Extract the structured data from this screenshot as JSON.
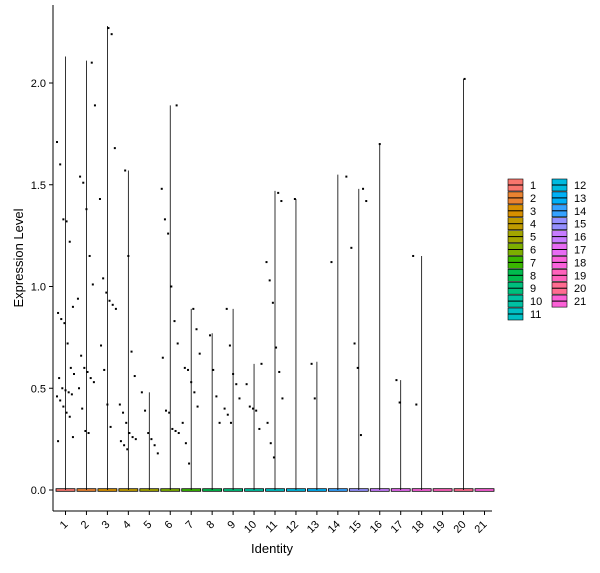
{
  "chart_data": {
    "type": "violin",
    "xlabel": "Identity",
    "ylabel": "Expression Level",
    "categories": [
      "1",
      "2",
      "3",
      "4",
      "5",
      "6",
      "7",
      "8",
      "9",
      "10",
      "11",
      "12",
      "13",
      "14",
      "15",
      "16",
      "17",
      "18",
      "19",
      "20",
      "21"
    ],
    "ylim": [
      -0.1,
      2.38
    ],
    "yticks": [
      0.0,
      0.5,
      1.0,
      1.5,
      2.0
    ],
    "ytick_labels": [
      "0.0",
      "0.5",
      "1.0",
      "1.5",
      "2.0"
    ],
    "grid": false,
    "legend_position": "right",
    "series": [
      {
        "name": "1",
        "color": "#F8766D",
        "max": 2.13,
        "points": [
          1.71,
          1.6,
          1.33,
          1.32,
          1.22,
          0.9,
          0.87,
          0.84,
          0.82,
          0.72,
          0.6,
          0.57,
          0.55,
          0.5,
          0.49,
          0.48,
          0.47,
          0.46,
          0.44,
          0.41,
          0.38,
          0.36,
          0.26,
          0.24
        ]
      },
      {
        "name": "2",
        "color": "#EA8331",
        "max": 2.11,
        "points": [
          2.1,
          1.89,
          1.54,
          1.51,
          1.38,
          1.15,
          1.01,
          0.94,
          0.66,
          0.6,
          0.58,
          0.55,
          0.53,
          0.5,
          0.4,
          0.29,
          0.28
        ]
      },
      {
        "name": "3",
        "color": "#D89000",
        "max": 2.28,
        "points": [
          2.27,
          2.24,
          1.68,
          1.43,
          1.04,
          0.97,
          0.93,
          0.91,
          0.89,
          0.71,
          0.59,
          0.42,
          0.31
        ]
      },
      {
        "name": "4",
        "color": "#C09B00",
        "max": 1.57,
        "points": [
          1.57,
          1.15,
          0.68,
          0.56,
          0.42,
          0.38,
          0.33,
          0.28,
          0.26,
          0.25,
          0.24,
          0.22,
          0.2
        ]
      },
      {
        "name": "5",
        "color": "#A3A500",
        "max": 0.48,
        "points": [
          0.48,
          0.39,
          0.28,
          0.25,
          0.22,
          0.18
        ]
      },
      {
        "name": "6",
        "color": "#7CAE00",
        "max": 1.89,
        "points": [
          1.89,
          1.48,
          1.33,
          1.26,
          1.0,
          0.83,
          0.72,
          0.65,
          0.39,
          0.38,
          0.3,
          0.29,
          0.28
        ]
      },
      {
        "name": "7",
        "color": "#39B600",
        "max": 0.89,
        "points": [
          0.89,
          0.79,
          0.67,
          0.6,
          0.59,
          0.53,
          0.48,
          0.41,
          0.33,
          0.23,
          0.13
        ]
      },
      {
        "name": "8",
        "color": "#00BB4E",
        "max": 0.77,
        "points": [
          0.76,
          0.59,
          0.46,
          0.33
        ]
      },
      {
        "name": "9",
        "color": "#00BF7D",
        "max": 0.89,
        "points": [
          0.89,
          0.71,
          0.57,
          0.52,
          0.45,
          0.4,
          0.37,
          0.33
        ]
      },
      {
        "name": "10",
        "color": "#00C1A3",
        "max": 0.62,
        "points": [
          0.62,
          0.52,
          0.41,
          0.4,
          0.39,
          0.3
        ]
      },
      {
        "name": "11",
        "color": "#00BFC4",
        "max": 1.47,
        "points": [
          1.46,
          1.42,
          1.12,
          1.03,
          0.92,
          0.7,
          0.58,
          0.45,
          0.33,
          0.23,
          0.16
        ]
      },
      {
        "name": "12",
        "color": "#00BAE0",
        "max": 1.43,
        "points": [
          1.43
        ]
      },
      {
        "name": "13",
        "color": "#00B0F6",
        "max": 0.63,
        "points": [
          0.62,
          0.45
        ]
      },
      {
        "name": "14",
        "color": "#35A2FF",
        "max": 1.55,
        "points": [
          1.54,
          1.12
        ]
      },
      {
        "name": "15",
        "color": "#9590FF",
        "max": 1.48,
        "points": [
          1.48,
          1.42,
          1.19,
          0.72,
          0.6,
          0.27
        ]
      },
      {
        "name": "16",
        "color": "#C77CFF",
        "max": 1.7,
        "points": [
          1.7
        ]
      },
      {
        "name": "17",
        "color": "#E76BF3",
        "max": 0.54,
        "points": [
          0.54,
          0.43
        ]
      },
      {
        "name": "18",
        "color": "#FA62DB",
        "max": 1.15,
        "points": [
          1.15,
          0.42
        ]
      },
      {
        "name": "19",
        "color": "#FF62BC",
        "max": 0.0,
        "points": []
      },
      {
        "name": "20",
        "color": "#FF6C91",
        "max": 2.02,
        "points": [
          2.02
        ]
      },
      {
        "name": "21",
        "color": "#FB61D7",
        "max": 0.0,
        "points": []
      }
    ]
  }
}
